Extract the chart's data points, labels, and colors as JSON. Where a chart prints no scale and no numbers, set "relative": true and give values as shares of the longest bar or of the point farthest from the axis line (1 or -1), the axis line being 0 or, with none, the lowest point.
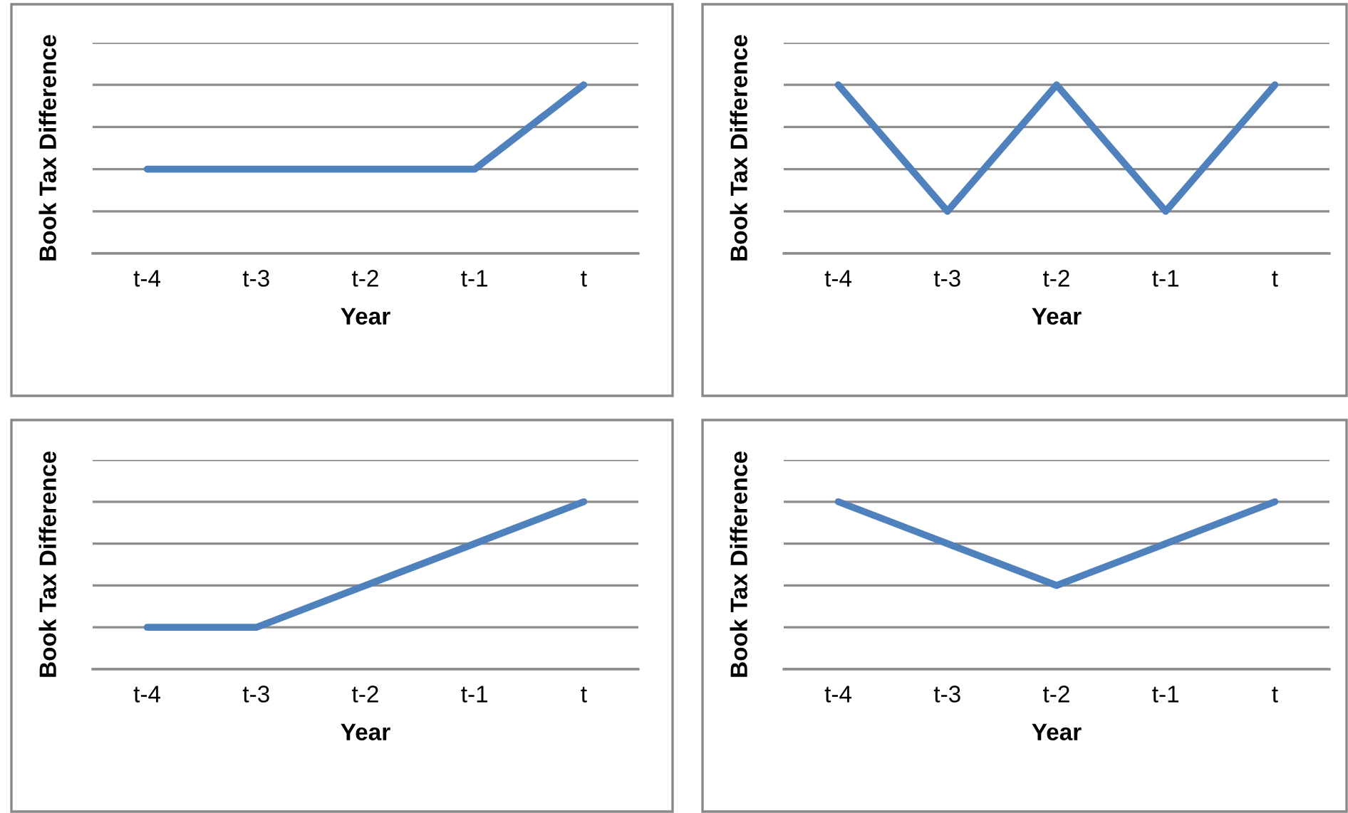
{
  "chart_data": [
    {
      "type": "line",
      "xlabel": "Year",
      "ylabel": "Book Tax Difference",
      "categories": [
        "t-4",
        "t-3",
        "t-2",
        "t-1",
        "t"
      ],
      "relative": true,
      "grid": "y",
      "series": [
        {
          "color": "#4f81bd",
          "values": [
            0.5,
            0.5,
            0.5,
            0.5,
            1
          ]
        }
      ]
    },
    {
      "type": "line",
      "xlabel": "Year",
      "ylabel": "Book Tax Difference",
      "categories": [
        "t-4",
        "t-3",
        "t-2",
        "t-1",
        "t"
      ],
      "relative": true,
      "grid": "y",
      "series": [
        {
          "color": "#4f81bd",
          "values": [
            1,
            0.25,
            1,
            0.25,
            1
          ]
        }
      ]
    },
    {
      "type": "line",
      "xlabel": "Year",
      "ylabel": "Book Tax Difference",
      "categories": [
        "t-4",
        "t-3",
        "t-2",
        "t-1",
        "t"
      ],
      "relative": true,
      "grid": "y",
      "series": [
        {
          "color": "#4f81bd",
          "values": [
            0.25,
            0.25,
            0.5,
            0.75,
            1
          ]
        }
      ]
    },
    {
      "type": "line",
      "xlabel": "Year",
      "ylabel": "Book Tax Difference",
      "categories": [
        "t-4",
        "t-3",
        "t-2",
        "t-1",
        "t"
      ],
      "relative": true,
      "grid": "y",
      "series": [
        {
          "color": "#4f81bd",
          "values": [
            1,
            0.75,
            0.5,
            0.75,
            1
          ]
        }
      ]
    }
  ]
}
